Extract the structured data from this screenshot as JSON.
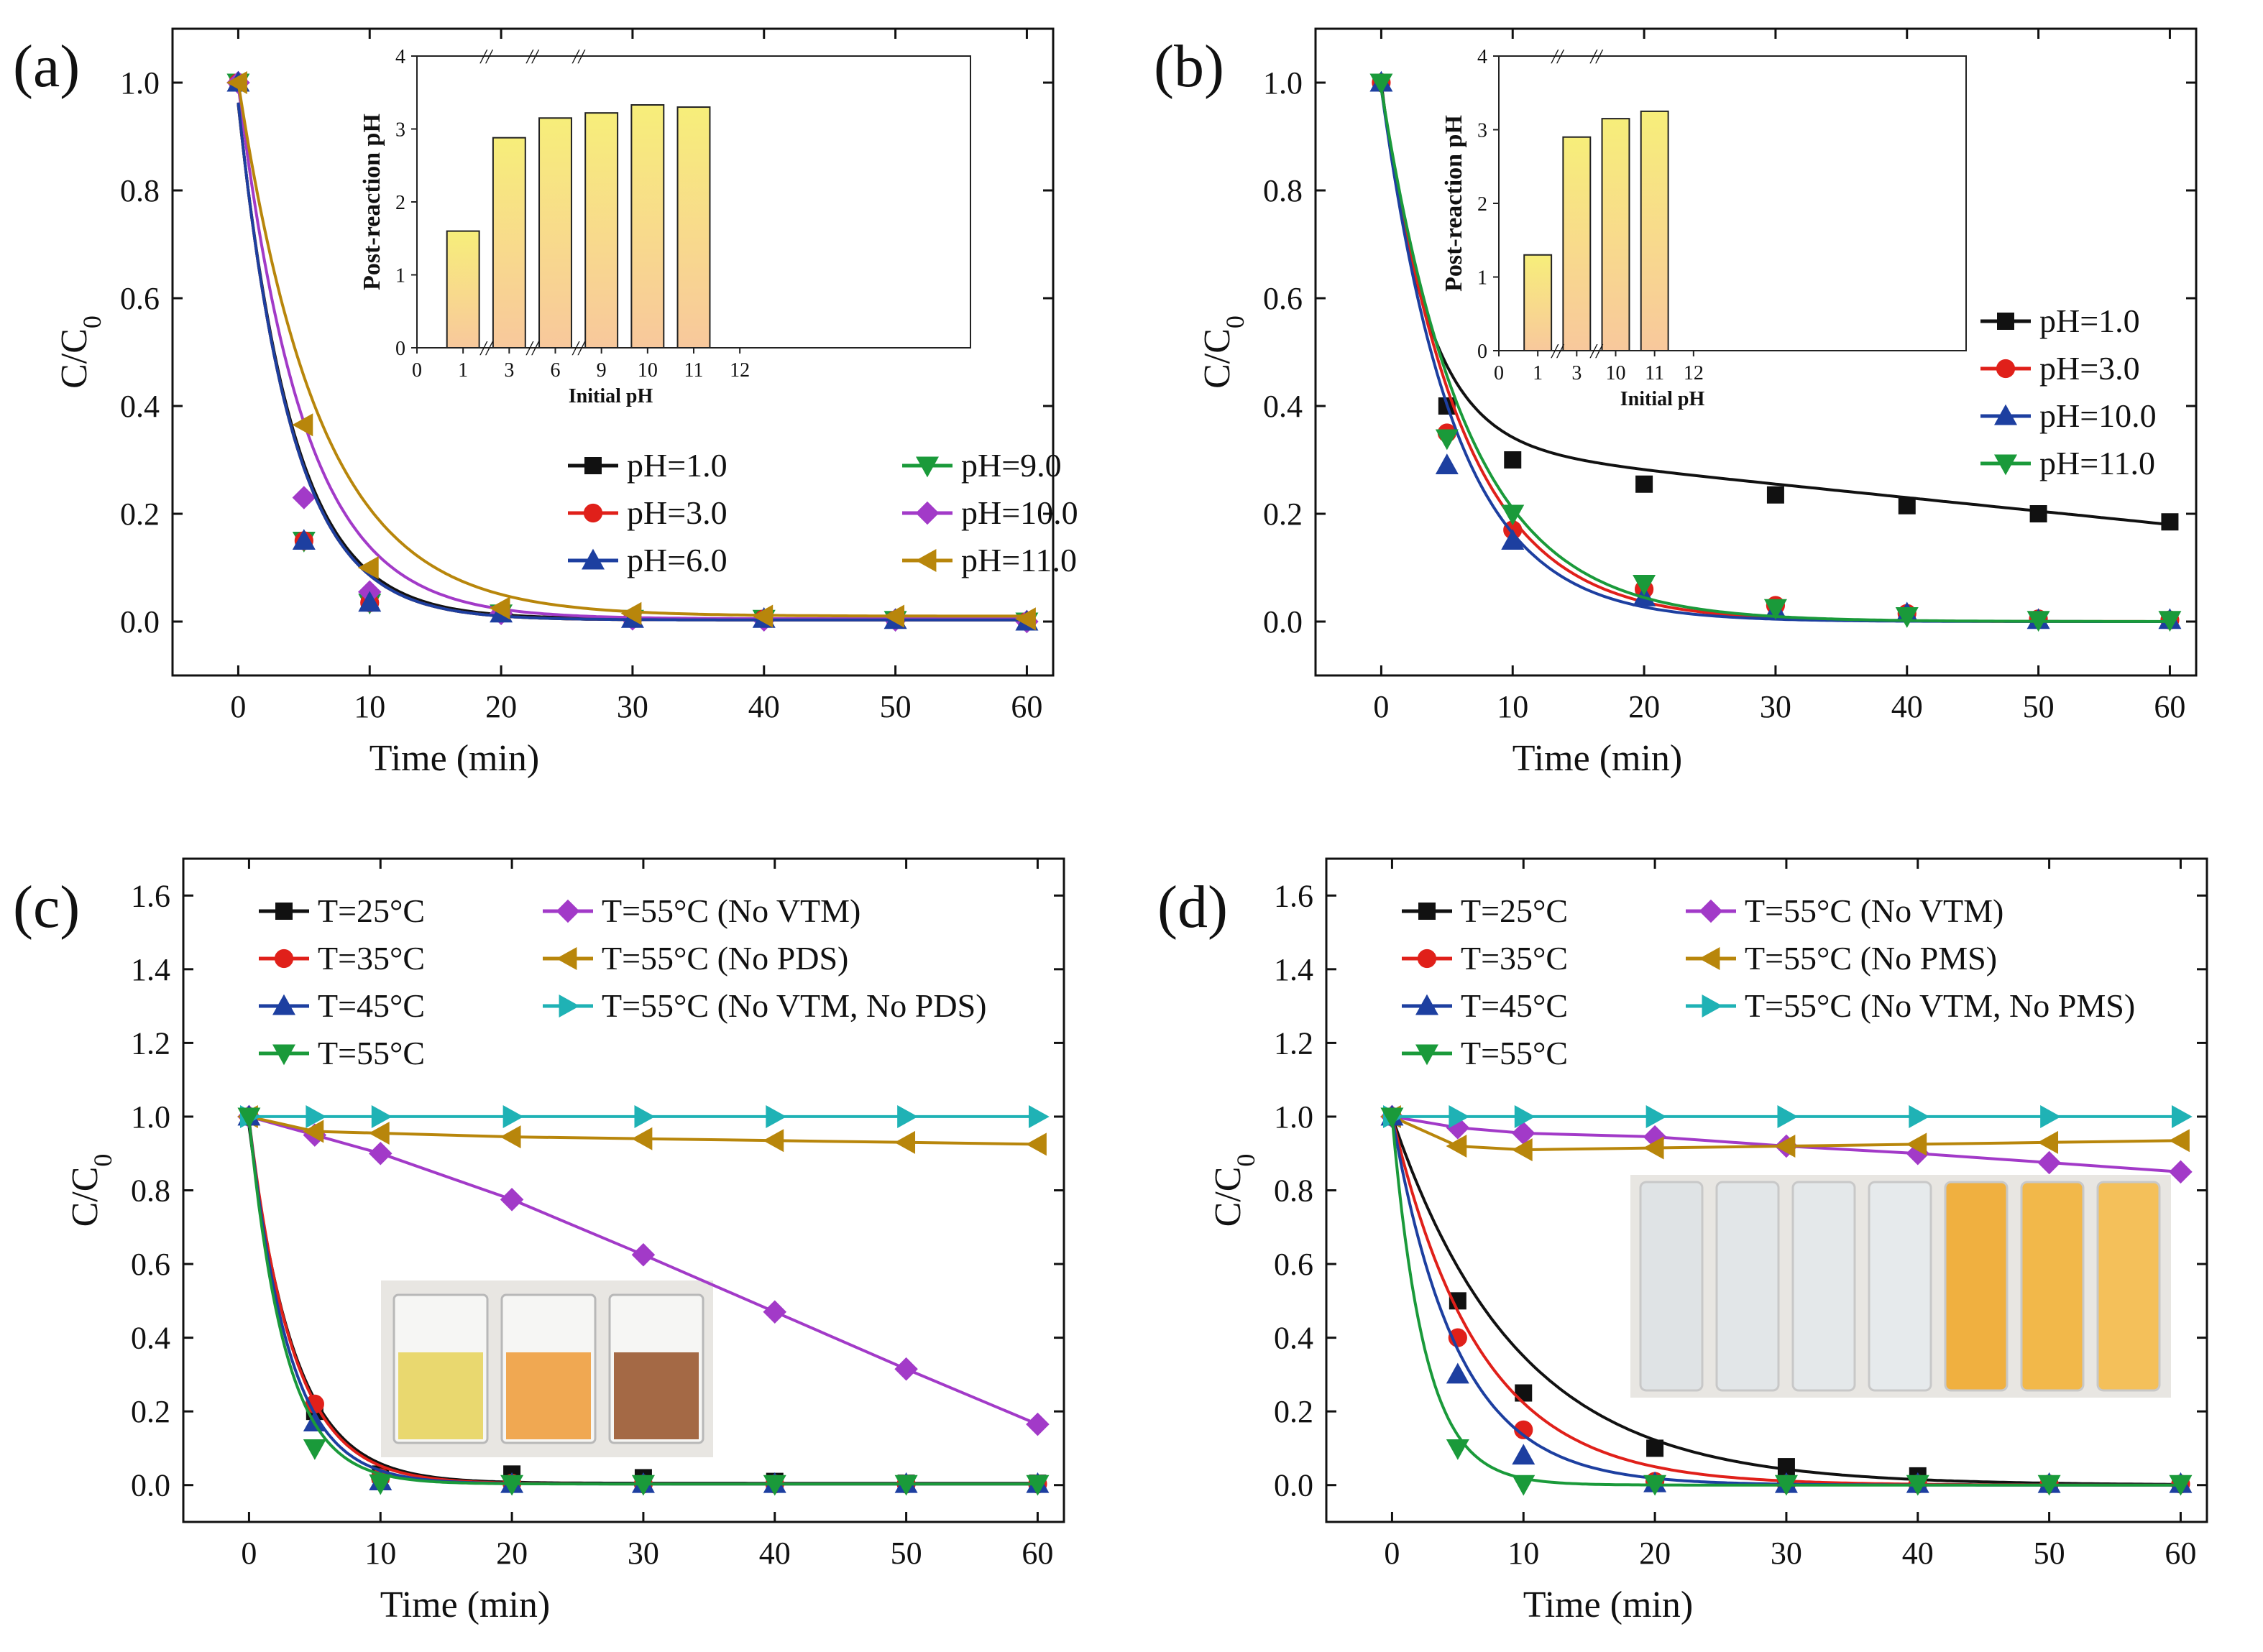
{
  "chart_data": [
    {
      "type": "line",
      "panel": "(a)",
      "xlabel": "Time (min)",
      "ylabel": "C/C0",
      "xlim": [
        -5,
        62
      ],
      "ylim": [
        -0.1,
        1.1
      ],
      "xticks": [
        0,
        10,
        20,
        30,
        40,
        50,
        60
      ],
      "yticks": [
        0.0,
        0.2,
        0.4,
        0.6,
        0.8,
        1.0
      ],
      "legend_columns": 2,
      "legend_placement": "middle-right",
      "series": [
        {
          "name": "pH=1.0",
          "color": "#111111",
          "marker": "square",
          "x": [
            0,
            5,
            10,
            20,
            30,
            40,
            50,
            60
          ],
          "y": [
            1.0,
            0.15,
            0.035,
            0.015,
            0.005,
            0.005,
            0.003,
            0.0
          ],
          "fit": {
            "a": 0.955,
            "k": 0.24,
            "c": 0.005
          }
        },
        {
          "name": "pH=9.0",
          "color": "#1a9a3a",
          "marker": "triangle-down",
          "x": [
            0,
            5,
            10,
            20,
            30,
            40,
            50,
            60
          ],
          "y": [
            1.0,
            0.15,
            0.035,
            0.015,
            0.005,
            0.005,
            0.003,
            0.0
          ],
          "fit": {
            "a": 0.96,
            "k": 0.245,
            "c": 0.003
          }
        },
        {
          "name": "pH=3.0",
          "color": "#e0201a",
          "marker": "circle",
          "x": [
            0,
            5,
            10,
            20,
            30,
            40,
            50,
            60
          ],
          "y": [
            1.0,
            0.15,
            0.035,
            0.015,
            0.005,
            0.005,
            0.003,
            0.0
          ],
          "fit": {
            "a": 0.96,
            "k": 0.245,
            "c": 0.003
          }
        },
        {
          "name": "pH=10.0",
          "color": "#a23ac8",
          "marker": "diamond",
          "x": [
            0,
            5,
            10,
            20,
            30,
            40,
            50,
            60
          ],
          "y": [
            1.0,
            0.23,
            0.055,
            0.015,
            0.005,
            0.003,
            0.003,
            0.0
          ],
          "fit": {
            "a": 0.99,
            "k": 0.2,
            "c": 0.005
          }
        },
        {
          "name": "pH=6.0",
          "color": "#1d3fa0",
          "marker": "triangle-up",
          "x": [
            0,
            5,
            10,
            20,
            30,
            40,
            50,
            60
          ],
          "y": [
            1.0,
            0.15,
            0.035,
            0.015,
            0.005,
            0.005,
            0.003,
            0.0
          ],
          "fit": {
            "a": 0.96,
            "k": 0.245,
            "c": 0.003
          }
        },
        {
          "name": "pH=11.0",
          "color": "#b8860b",
          "marker": "triangle-left",
          "x": [
            0,
            5,
            10,
            20,
            30,
            40,
            50,
            60
          ],
          "y": [
            1.0,
            0.365,
            0.1,
            0.025,
            0.015,
            0.01,
            0.01,
            0.005
          ],
          "fit": {
            "a": 0.99,
            "k": 0.16,
            "c": 0.01
          }
        }
      ],
      "inset": {
        "type": "bar",
        "xlabel": "Initial pH",
        "ylabel": "Post-reaction pH",
        "xlim": [
          0,
          12
        ],
        "ylim": [
          0,
          4
        ],
        "xticks": [
          "0",
          "1",
          "3",
          "6",
          "9",
          "10",
          "11",
          "12"
        ],
        "yticks": [
          0,
          1,
          2,
          3,
          4
        ],
        "categories": [
          "1",
          "3",
          "6",
          "9",
          "10",
          "11"
        ],
        "values": [
          1.6,
          2.88,
          3.15,
          3.22,
          3.33,
          3.3
        ],
        "axis_breaks": 3,
        "break_symbol": "//"
      }
    },
    {
      "type": "line",
      "panel": "(b)",
      "xlabel": "Time (min)",
      "ylabel": "C/C0",
      "xlim": [
        -5,
        62
      ],
      "ylim": [
        -0.1,
        1.1
      ],
      "xticks": [
        0,
        10,
        20,
        30,
        40,
        50,
        60
      ],
      "yticks": [
        0.0,
        0.2,
        0.4,
        0.6,
        0.8,
        1.0
      ],
      "legend_columns": 1,
      "legend_placement": "middle-right",
      "series": [
        {
          "name": "pH=1.0",
          "color": "#111111",
          "marker": "square",
          "x": [
            0,
            5,
            10,
            20,
            30,
            40,
            50,
            60
          ],
          "y": [
            1.0,
            0.4,
            0.3,
            0.255,
            0.235,
            0.215,
            0.2,
            0.185
          ],
          "fit": {
            "a": 0.67,
            "k": 0.29,
            "c": 0.33,
            "lin": -0.0025
          }
        },
        {
          "name": "pH=3.0",
          "color": "#e0201a",
          "marker": "circle",
          "x": [
            0,
            5,
            10,
            20,
            30,
            40,
            50,
            60
          ],
          "y": [
            1.0,
            0.35,
            0.17,
            0.06,
            0.03,
            0.015,
            0.005,
            0.003
          ],
          "fit": {
            "a": 0.99,
            "k": 0.165,
            "c": 0.0
          }
        },
        {
          "name": "pH=10.0",
          "color": "#1d3fa0",
          "marker": "triangle-up",
          "x": [
            0,
            5,
            10,
            20,
            30,
            40,
            50,
            60
          ],
          "y": [
            1.0,
            0.29,
            0.15,
            0.045,
            0.02,
            0.015,
            0.003,
            0.003
          ],
          "fit": {
            "a": 0.99,
            "k": 0.18,
            "c": 0.0
          }
        },
        {
          "name": "pH=11.0",
          "color": "#1a9a3a",
          "marker": "triangle-down",
          "x": [
            0,
            5,
            10,
            20,
            30,
            40,
            50,
            60
          ],
          "y": [
            1.0,
            0.34,
            0.2,
            0.07,
            0.025,
            0.01,
            0.003,
            0.003
          ],
          "fit": {
            "a": 0.99,
            "k": 0.155,
            "c": 0.0
          }
        }
      ],
      "inset": {
        "type": "bar",
        "xlabel": "Initial pH",
        "ylabel": "Post-reaction pH",
        "xlim": [
          0,
          12
        ],
        "ylim": [
          0,
          4
        ],
        "xticks": [
          "0",
          "1",
          "3",
          "10",
          "11",
          "12"
        ],
        "yticks": [
          0,
          1,
          2,
          3,
          4
        ],
        "categories": [
          "1",
          "3",
          "10",
          "11"
        ],
        "values": [
          1.3,
          2.9,
          3.15,
          3.25
        ],
        "axis_breaks": 2,
        "break_symbol": "//"
      }
    },
    {
      "type": "line",
      "panel": "(c)",
      "xlabel": "Time (min)",
      "ylabel": "C/C0",
      "xlim": [
        -5,
        62
      ],
      "ylim": [
        -0.1,
        1.7
      ],
      "xticks": [
        0,
        10,
        20,
        30,
        40,
        50,
        60
      ],
      "yticks": [
        0.0,
        0.2,
        0.4,
        0.6,
        0.8,
        1.0,
        1.2,
        1.4,
        1.6
      ],
      "legend_columns": 2,
      "legend_placement": "top-left",
      "photo_inset": "beakers",
      "series": [
        {
          "name": "T=25°C",
          "color": "#111111",
          "marker": "square",
          "x": [
            0,
            5,
            10,
            20,
            30,
            40,
            50,
            60
          ],
          "y": [
            1.0,
            0.2,
            0.03,
            0.03,
            0.02,
            0.01,
            0.005,
            0.005
          ],
          "fit": {
            "a": 0.97,
            "k": 0.29,
            "c": 0.005
          }
        },
        {
          "name": "T=55°C (No VTM)",
          "color": "#a23ac8",
          "marker": "diamond",
          "x": [
            0,
            5,
            10,
            20,
            30,
            40,
            50,
            60
          ],
          "y": [
            1.0,
            0.95,
            0.9,
            0.775,
            0.625,
            0.47,
            0.315,
            0.165
          ],
          "fit": {
            "kind": "linear"
          }
        },
        {
          "name": "T=35°C",
          "color": "#e0201a",
          "marker": "circle",
          "x": [
            0,
            5,
            10,
            20,
            30,
            40,
            50,
            60
          ],
          "y": [
            1.0,
            0.22,
            0.02,
            0.005,
            0.003,
            0.003,
            0.003,
            0.003
          ],
          "fit": {
            "a": 0.99,
            "k": 0.3,
            "c": 0.003
          }
        },
        {
          "name": "T=55°C (No PDS)",
          "color": "#b8860b",
          "marker": "triangle-left",
          "x": [
            0,
            5,
            10,
            20,
            30,
            40,
            50,
            60
          ],
          "y": [
            1.0,
            0.96,
            0.955,
            0.945,
            0.94,
            0.935,
            0.93,
            0.925
          ],
          "fit": {
            "kind": "linear"
          }
        },
        {
          "name": "T=45°C",
          "color": "#1d3fa0",
          "marker": "triangle-up",
          "x": [
            0,
            5,
            10,
            20,
            30,
            40,
            50,
            60
          ],
          "y": [
            1.0,
            0.17,
            0.01,
            0.003,
            0.003,
            0.003,
            0.003,
            0.003
          ],
          "fit": {
            "a": 0.99,
            "k": 0.33,
            "c": 0.003
          }
        },
        {
          "name": "T=55°C (No VTM, No PDS)",
          "color": "#1fb2b5",
          "marker": "triangle-right",
          "x": [
            0,
            5,
            10,
            20,
            30,
            40,
            50,
            60
          ],
          "y": [
            1.0,
            1.0,
            1.0,
            1.0,
            1.0,
            1.0,
            1.0,
            1.0
          ],
          "fit": {
            "kind": "linear"
          }
        },
        {
          "name": "T=55°C",
          "color": "#1a9a3a",
          "marker": "triangle-down",
          "x": [
            0,
            5,
            10,
            20,
            30,
            40,
            50,
            60
          ],
          "y": [
            1.0,
            0.1,
            0.005,
            0.003,
            0.003,
            0.003,
            0.003,
            0.003
          ],
          "fit": {
            "a": 0.99,
            "k": 0.36,
            "c": 0.003
          }
        }
      ]
    },
    {
      "type": "line",
      "panel": "(d)",
      "xlabel": "Time (min)",
      "ylabel": "C/C0",
      "xlim": [
        -5,
        62
      ],
      "ylim": [
        -0.1,
        1.7
      ],
      "xticks": [
        0,
        10,
        20,
        30,
        40,
        50,
        60
      ],
      "yticks": [
        0.0,
        0.2,
        0.4,
        0.6,
        0.8,
        1.0,
        1.2,
        1.4,
        1.6
      ],
      "legend_columns": 2,
      "legend_placement": "top-left",
      "photo_inset": "cuvettes",
      "series": [
        {
          "name": "T=25°C",
          "color": "#111111",
          "marker": "square",
          "x": [
            0,
            5,
            10,
            20,
            30,
            40,
            50,
            60
          ],
          "y": [
            1.0,
            0.5,
            0.25,
            0.1,
            0.05,
            0.025,
            0.003,
            0.003
          ],
          "fit": {
            "a": 1.0,
            "k": 0.105,
            "c": 0.0
          }
        },
        {
          "name": "T=55°C (No VTM)",
          "color": "#a23ac8",
          "marker": "diamond",
          "x": [
            0,
            5,
            10,
            20,
            30,
            40,
            50,
            60
          ],
          "y": [
            1.0,
            0.97,
            0.955,
            0.945,
            0.92,
            0.9,
            0.875,
            0.85
          ],
          "fit": {
            "kind": "linear"
          }
        },
        {
          "name": "T=35°C",
          "color": "#e0201a",
          "marker": "circle",
          "x": [
            0,
            5,
            10,
            20,
            30,
            40,
            50,
            60
          ],
          "y": [
            1.0,
            0.4,
            0.15,
            0.01,
            0.003,
            0.003,
            0.003,
            0.003
          ],
          "fit": {
            "a": 1.0,
            "k": 0.15,
            "c": 0.0
          }
        },
        {
          "name": "T=55°C (No PMS)",
          "color": "#b8860b",
          "marker": "triangle-left",
          "x": [
            0,
            5,
            10,
            20,
            30,
            40,
            50,
            60
          ],
          "y": [
            1.0,
            0.92,
            0.91,
            0.915,
            0.92,
            0.925,
            0.93,
            0.935
          ],
          "fit": {
            "kind": "linear"
          }
        },
        {
          "name": "T=45°C",
          "color": "#1d3fa0",
          "marker": "triangle-up",
          "x": [
            0,
            5,
            10,
            20,
            30,
            40,
            50,
            60
          ],
          "y": [
            1.0,
            0.3,
            0.08,
            0.005,
            0.003,
            0.003,
            0.003,
            0.003
          ],
          "fit": {
            "a": 1.0,
            "k": 0.2,
            "c": 0.0
          }
        },
        {
          "name": "T=55°C (No VTM, No PMS)",
          "color": "#1fb2b5",
          "marker": "triangle-right",
          "x": [
            0,
            5,
            10,
            20,
            30,
            40,
            50,
            60
          ],
          "y": [
            1.0,
            1.0,
            1.0,
            1.0,
            1.0,
            1.0,
            1.0,
            1.0
          ],
          "fit": {
            "kind": "linear"
          }
        },
        {
          "name": "T=55°C",
          "color": "#1a9a3a",
          "marker": "triangle-down",
          "x": [
            0,
            5,
            10,
            20,
            30,
            40,
            50,
            60
          ],
          "y": [
            1.0,
            0.1,
            0.003,
            0.003,
            0.003,
            0.003,
            0.003,
            0.003
          ],
          "fit": {
            "a": 1.0,
            "k": 0.4,
            "c": 0.0
          }
        }
      ]
    }
  ]
}
